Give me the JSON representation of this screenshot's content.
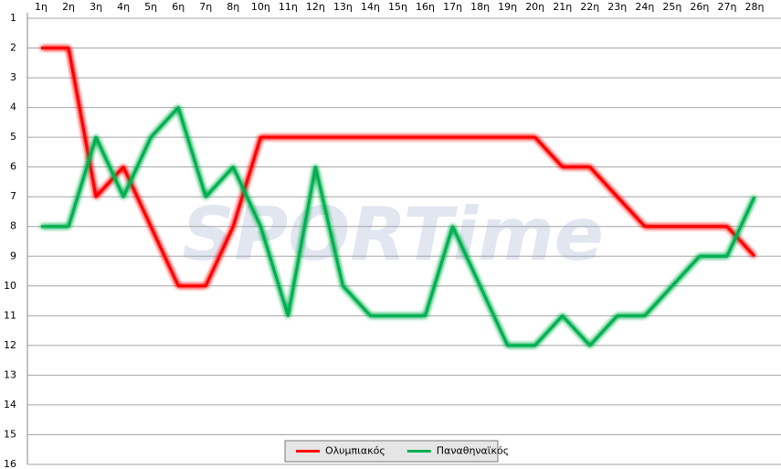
{
  "chart_data": {
    "type": "line",
    "watermark": "SPORTime",
    "categories": [
      "1η",
      "2η",
      "3η",
      "4η",
      "5η",
      "6η",
      "7η",
      "8η",
      "10η",
      "11η",
      "12η",
      "13η",
      "14η",
      "15η",
      "16η",
      "17η",
      "18η",
      "19η",
      "20η",
      "21η",
      "22η",
      "23η",
      "24η",
      "25η",
      "26η",
      "27η",
      "28η"
    ],
    "series": [
      {
        "name": "Ολυμπιακός",
        "color": "#ff0000",
        "values": [
          2,
          2,
          7,
          6,
          8,
          10,
          10,
          8,
          5,
          5,
          5,
          5,
          5,
          5,
          5,
          5,
          5,
          5,
          5,
          6,
          6,
          7,
          8,
          8,
          8,
          8,
          9
        ]
      },
      {
        "name": "Παναθηναϊκός",
        "color": "#00b050",
        "values": [
          8,
          8,
          5,
          7,
          5,
          4,
          7,
          6,
          8,
          11,
          6,
          10,
          11,
          11,
          11,
          8,
          10,
          12,
          12,
          11,
          12,
          11,
          11,
          10,
          9,
          9,
          7
        ]
      }
    ],
    "ylim": [
      1,
      16
    ],
    "yticks": [
      1,
      2,
      3,
      4,
      5,
      6,
      7,
      8,
      9,
      10,
      11,
      12,
      13,
      14,
      15,
      16
    ],
    "y_inverted": true,
    "grid": true,
    "legend": "bottom"
  }
}
